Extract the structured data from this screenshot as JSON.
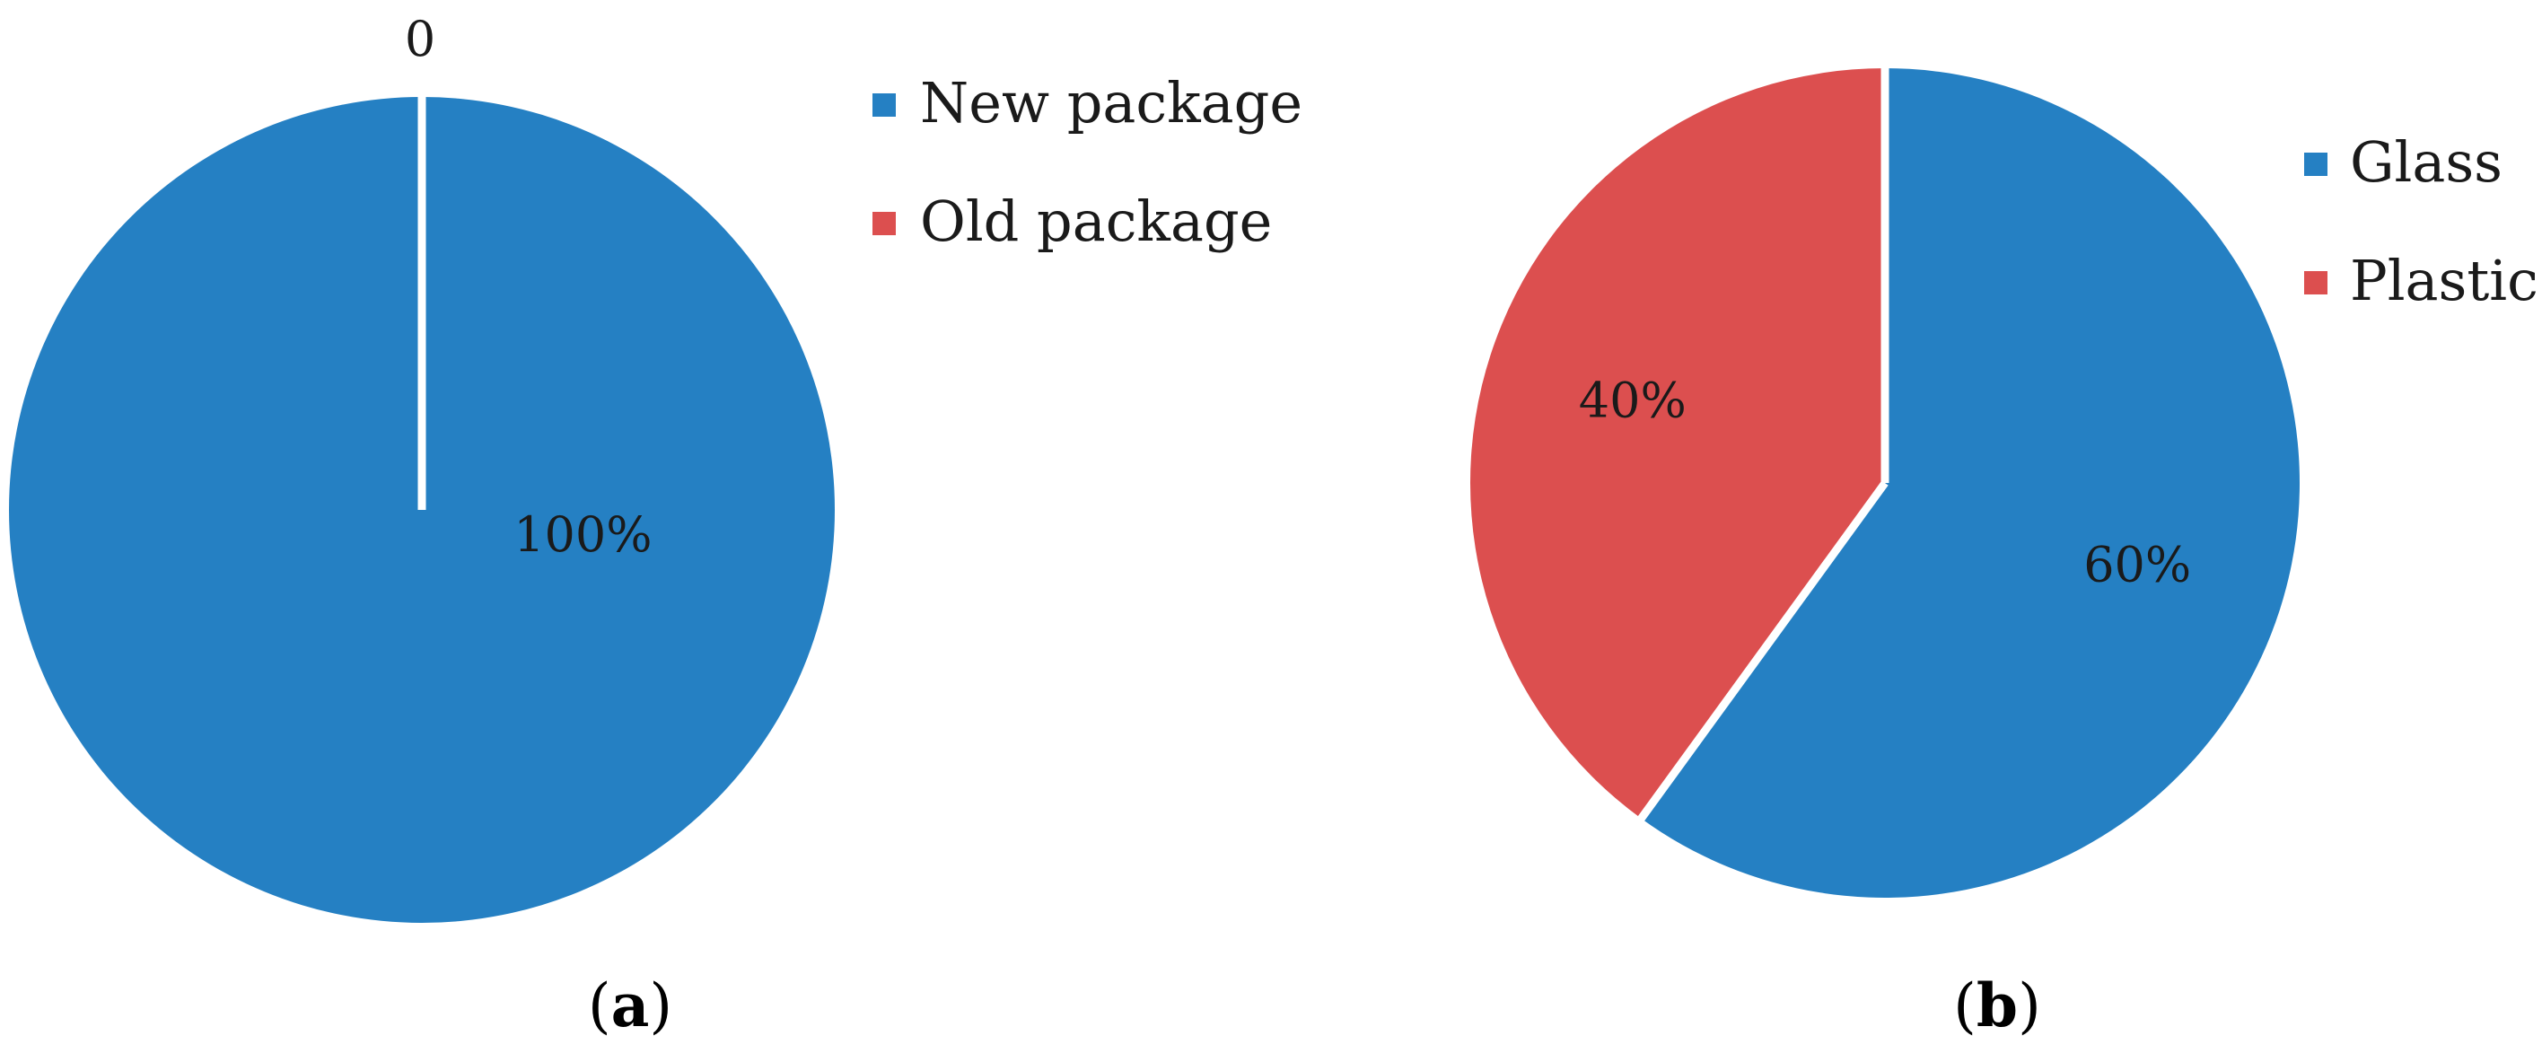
{
  "chart_data": [
    {
      "type": "pie",
      "panel_label": "a",
      "slices": [
        {
          "name": "New package",
          "value": 100,
          "label": "100%",
          "color": "#2580c3"
        },
        {
          "name": "Old package",
          "value": 0,
          "label": "0",
          "color": "#dc4f4f"
        }
      ],
      "legend": [
        "New package",
        "Old package"
      ],
      "legend_position": "right"
    },
    {
      "type": "pie",
      "panel_label": "b",
      "slices": [
        {
          "name": "Glass",
          "value": 60,
          "label": "60%",
          "color": "#2580c3"
        },
        {
          "name": "Plastic",
          "value": 40,
          "label": "40%",
          "color": "#dc4f4f"
        }
      ],
      "legend": [
        "Glass",
        "Plastic"
      ],
      "legend_position": "right"
    }
  ],
  "figure_tags": {
    "a": {
      "open": "(",
      "letter": "a",
      "close": ")"
    },
    "b": {
      "open": "(",
      "letter": "b",
      "close": ")"
    }
  }
}
